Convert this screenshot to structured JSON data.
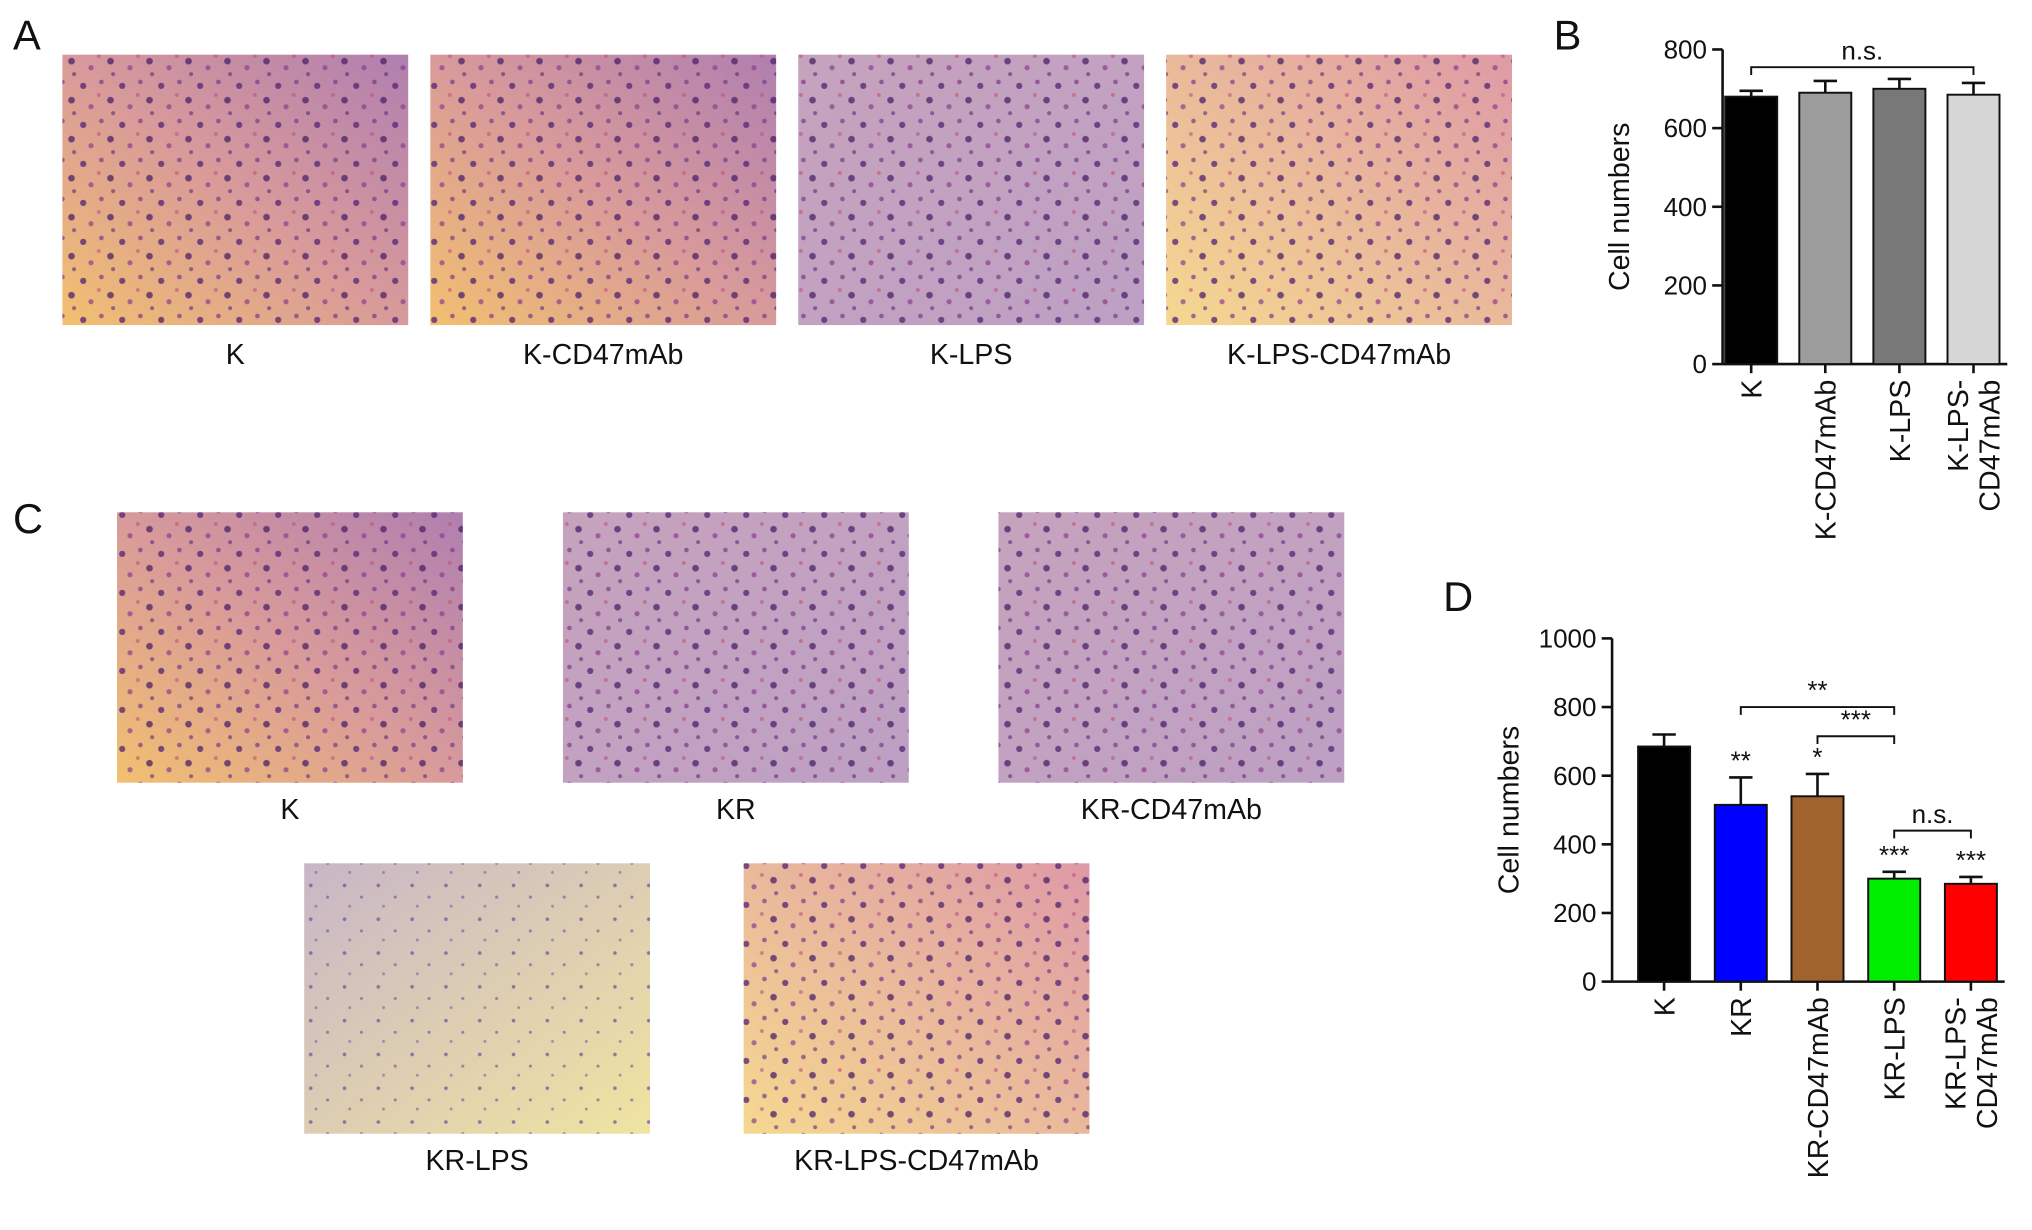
{
  "panel_labels": [
    "A",
    "B",
    "C",
    "D"
  ],
  "image_panels": [
    {
      "captions": [
        "K",
        "K-CD47mAb",
        "K-LPS",
        "K-LPS-CD47mAb"
      ]
    },
    {
      "captions": [
        "K",
        "KR",
        "KR-CD47mAb",
        "KR-LPS",
        "KR-LPS-CD47mAb"
      ]
    }
  ],
  "chart_data": [
    {
      "type": "bar",
      "y_label": "Cell numbers",
      "categories": [
        "K",
        "K-CD47mAb",
        "K-LPS",
        "K-LPS-CD47mAb"
      ],
      "values": [
        680,
        690,
        700,
        685
      ],
      "errors": [
        15,
        30,
        25,
        30
      ],
      "colors": [
        "#000000",
        "#9c9c9c",
        "#787878",
        "#d6d6d6"
      ],
      "ylim": [
        0,
        800
      ],
      "yticks": [
        0,
        200,
        400,
        600,
        800
      ],
      "brackets": [
        {
          "from": 0,
          "to": 3,
          "y": 755,
          "label": "n.s."
        }
      ]
    },
    {
      "type": "bar",
      "y_label": "Cell numbers",
      "categories": [
        "K",
        "KR",
        "KR-CD47mAb",
        "KR-LPS",
        "KR-LPS-CD47mAb"
      ],
      "values": [
        685,
        515,
        540,
        300,
        285
      ],
      "errors": [
        35,
        80,
        65,
        20,
        20
      ],
      "significance": [
        null,
        "**",
        "*",
        "***",
        "***"
      ],
      "colors": [
        "#000000",
        "#0000ff",
        "#a0632e",
        "#00ee00",
        "#ff0000"
      ],
      "ylim": [
        0,
        1000
      ],
      "yticks": [
        0,
        200,
        400,
        600,
        800,
        1000
      ],
      "brackets": [
        {
          "from": 1,
          "to": 3,
          "y": 800,
          "label": "**"
        },
        {
          "from": 2,
          "to": 3,
          "y": 715,
          "label": "***"
        },
        {
          "from": 3,
          "to": 4,
          "y": 440,
          "label": "n.s."
        }
      ]
    }
  ]
}
